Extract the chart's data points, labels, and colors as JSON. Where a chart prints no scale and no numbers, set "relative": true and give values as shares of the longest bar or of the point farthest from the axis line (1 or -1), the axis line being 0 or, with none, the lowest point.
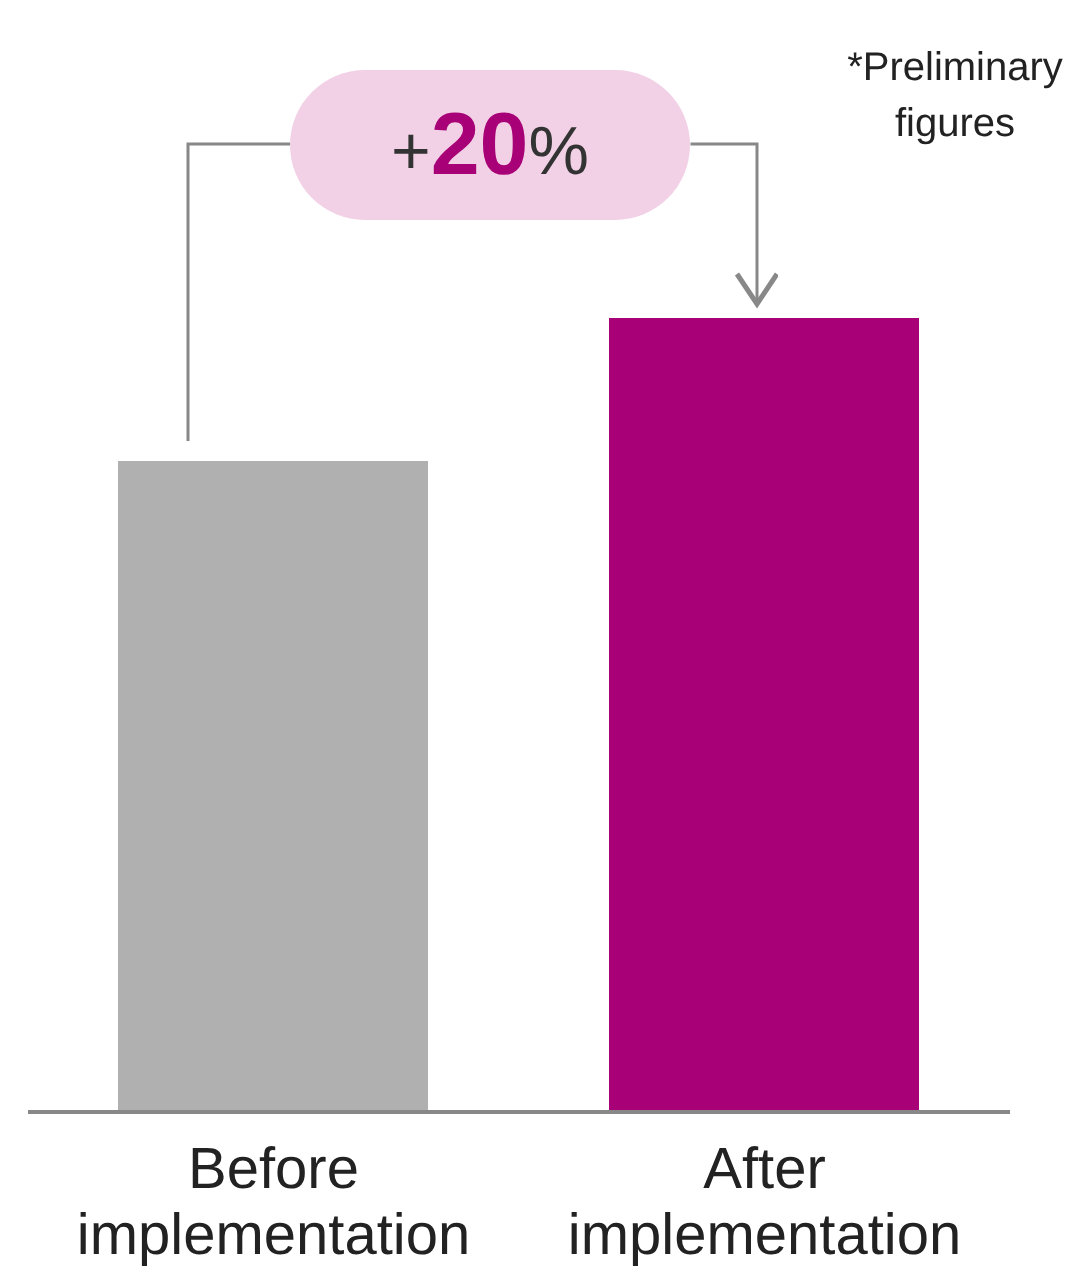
{
  "chart_data": {
    "type": "bar",
    "relative": true,
    "categories": [
      "Before implementation",
      "After implementation"
    ],
    "values": [
      0.82,
      1
    ],
    "colors": [
      "#b0b0b0",
      "#a80076"
    ],
    "annotations": [
      "+20%",
      "*Preliminary figures"
    ]
  }
}
